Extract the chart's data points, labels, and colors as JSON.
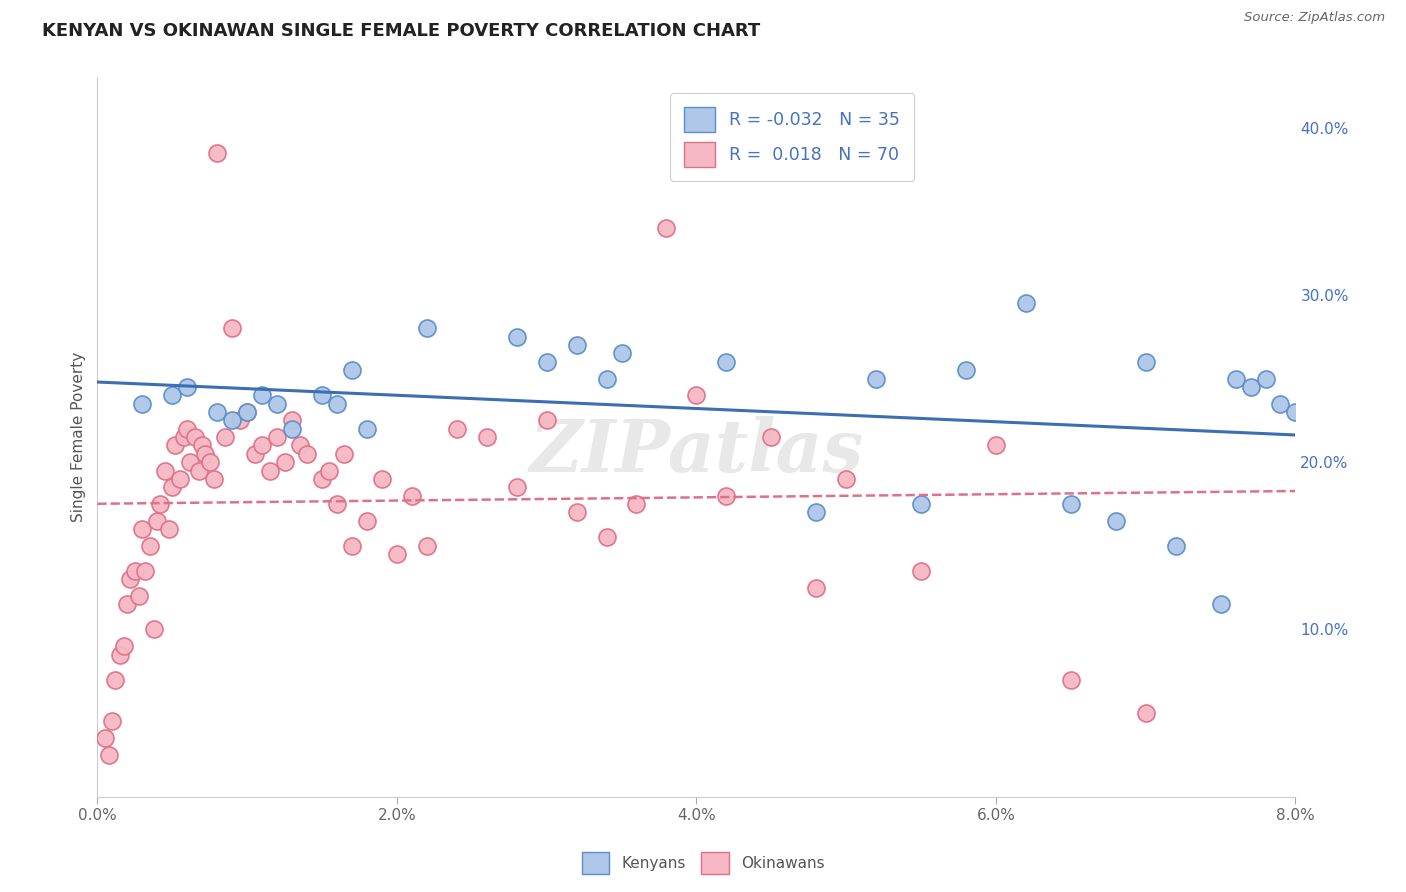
{
  "title": "KENYAN VS OKINAWAN SINGLE FEMALE POVERTY CORRELATION CHART",
  "source": "Source: ZipAtlas.com",
  "ylabel": "Single Female Poverty",
  "x_ticks_values": [
    0.0,
    2.0,
    4.0,
    6.0,
    8.0
  ],
  "y_ticks_right_values": [
    10.0,
    20.0,
    30.0,
    40.0
  ],
  "xlim": [
    0.0,
    8.0
  ],
  "ylim": [
    0.0,
    43.0
  ],
  "kenyan_color": "#aec6e8",
  "kenyan_edge_color": "#5b8fc9",
  "okinawan_color": "#f5b8c4",
  "okinawan_edge_color": "#e07088",
  "blue_line_color": "#3c6eb4",
  "pink_line_color": "#e07088",
  "watermark": "ZIPatlas",
  "R_kenyan": -0.032,
  "R_okinawan": 0.018,
  "N_kenyan": 35,
  "N_okinawan": 70,
  "kenyan_x": [
    0.3,
    0.5,
    0.6,
    0.8,
    0.9,
    1.0,
    1.1,
    1.2,
    1.3,
    1.5,
    1.6,
    1.7,
    1.8,
    2.2,
    2.8,
    3.0,
    3.2,
    3.4,
    3.5,
    4.2,
    4.8,
    5.2,
    5.5,
    5.8,
    6.2,
    6.5,
    6.8,
    7.0,
    7.2,
    7.5,
    7.6,
    7.7,
    7.8,
    7.9,
    8.0
  ],
  "kenyan_y": [
    23.5,
    24.0,
    24.5,
    23.0,
    22.5,
    23.0,
    24.0,
    23.5,
    22.0,
    24.0,
    23.5,
    25.5,
    22.0,
    28.0,
    27.5,
    26.0,
    27.0,
    25.0,
    26.5,
    26.0,
    17.0,
    25.0,
    17.5,
    25.5,
    29.5,
    17.5,
    16.5,
    26.0,
    15.0,
    11.5,
    25.0,
    24.5,
    25.0,
    23.5,
    23.0
  ],
  "okinawan_x": [
    0.05,
    0.08,
    0.1,
    0.12,
    0.15,
    0.18,
    0.2,
    0.22,
    0.25,
    0.28,
    0.3,
    0.32,
    0.35,
    0.38,
    0.4,
    0.42,
    0.45,
    0.48,
    0.5,
    0.52,
    0.55,
    0.58,
    0.6,
    0.62,
    0.65,
    0.68,
    0.7,
    0.72,
    0.75,
    0.78,
    0.8,
    0.85,
    0.9,
    0.95,
    1.0,
    1.05,
    1.1,
    1.15,
    1.2,
    1.25,
    1.3,
    1.35,
    1.4,
    1.5,
    1.55,
    1.6,
    1.65,
    1.7,
    1.8,
    1.9,
    2.0,
    2.1,
    2.2,
    2.4,
    2.6,
    2.8,
    3.0,
    3.2,
    3.4,
    3.6,
    3.8,
    4.0,
    4.2,
    4.5,
    4.8,
    5.0,
    5.5,
    6.0,
    6.5,
    7.0
  ],
  "okinawan_y": [
    3.5,
    2.5,
    4.5,
    7.0,
    8.5,
    9.0,
    11.5,
    13.0,
    13.5,
    12.0,
    16.0,
    13.5,
    15.0,
    10.0,
    16.5,
    17.5,
    19.5,
    16.0,
    18.5,
    21.0,
    19.0,
    21.5,
    22.0,
    20.0,
    21.5,
    19.5,
    21.0,
    20.5,
    20.0,
    19.0,
    38.5,
    21.5,
    28.0,
    22.5,
    23.0,
    20.5,
    21.0,
    19.5,
    21.5,
    20.0,
    22.5,
    21.0,
    20.5,
    19.0,
    19.5,
    17.5,
    20.5,
    15.0,
    16.5,
    19.0,
    14.5,
    18.0,
    15.0,
    22.0,
    21.5,
    18.5,
    22.5,
    17.0,
    15.5,
    17.5,
    34.0,
    24.0,
    18.0,
    21.5,
    12.5,
    19.0,
    13.5,
    21.0,
    7.0,
    5.0
  ]
}
